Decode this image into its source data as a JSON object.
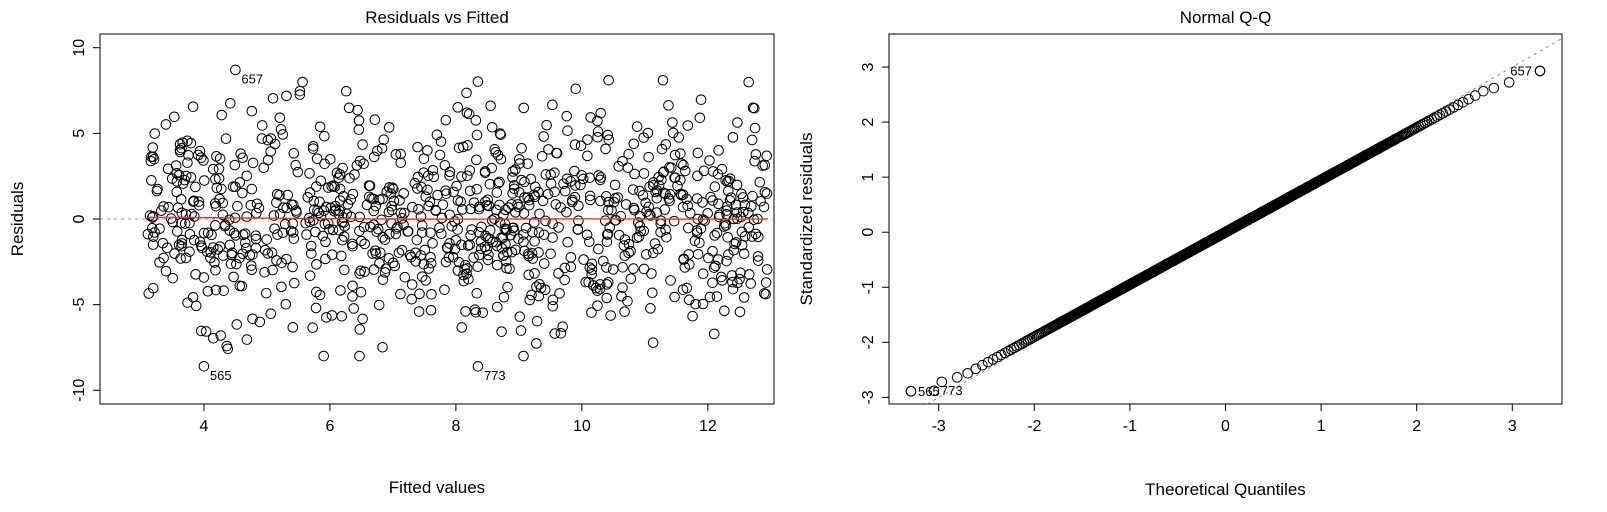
{
  "chart_data": [
    {
      "type": "scatter",
      "title": "Residuals vs Fitted",
      "xlabel": "Fitted values",
      "ylabel": "Residuals",
      "xlim": [
        2.35,
        13.05
      ],
      "ylim": [
        -10.8,
        10.8
      ],
      "x_ticks": [
        4,
        6,
        8,
        10,
        12
      ],
      "y_ticks": [
        -10,
        -5,
        0,
        5,
        10
      ],
      "reference_line": {
        "y": 0,
        "style": "dotted",
        "color": "#9a9a9a"
      },
      "smooth_line": {
        "color": "#e83a2f",
        "x": [
          3.1,
          4,
          5,
          6,
          7,
          8,
          9,
          10,
          11,
          12,
          12.95
        ],
        "y": [
          0.1,
          0.08,
          0.05,
          0.02,
          0.0,
          -0.01,
          0.0,
          0.01,
          0.0,
          -0.01,
          0.0
        ]
      },
      "labeled_points": [
        {
          "label": "657",
          "x": 4.5,
          "y": 8.7
        },
        {
          "label": "565",
          "x": 4.0,
          "y": -8.6
        },
        {
          "label": "773",
          "x": 8.35,
          "y": -8.6
        }
      ],
      "generated_points": {
        "count": 1000,
        "x_range": [
          3.1,
          12.95
        ],
        "y_sd": 3.05
      }
    },
    {
      "type": "scatter",
      "title": "Normal Q-Q",
      "xlabel": "Theoretical Quantiles",
      "ylabel": "Standardized residuals",
      "xlim": [
        -3.52,
        3.52
      ],
      "ylim": [
        -3.12,
        3.6
      ],
      "x_ticks": [
        -3,
        -2,
        -1,
        0,
        1,
        2,
        3
      ],
      "y_ticks": [
        -3,
        -2,
        -1,
        0,
        1,
        2,
        3
      ],
      "reference_line": {
        "slope": 1.0,
        "intercept": 0.0,
        "style": "dotted",
        "color": "#8f8f8f"
      },
      "labeled_points": [
        {
          "label": "657",
          "x": 3.29,
          "y": 2.93
        },
        {
          "label": "565",
          "x": -3.29,
          "y": -2.89
        },
        {
          "label": "773",
          "x": -3.05,
          "y": -2.88
        }
      ],
      "generated_points": {
        "count": 1000
      }
    }
  ]
}
